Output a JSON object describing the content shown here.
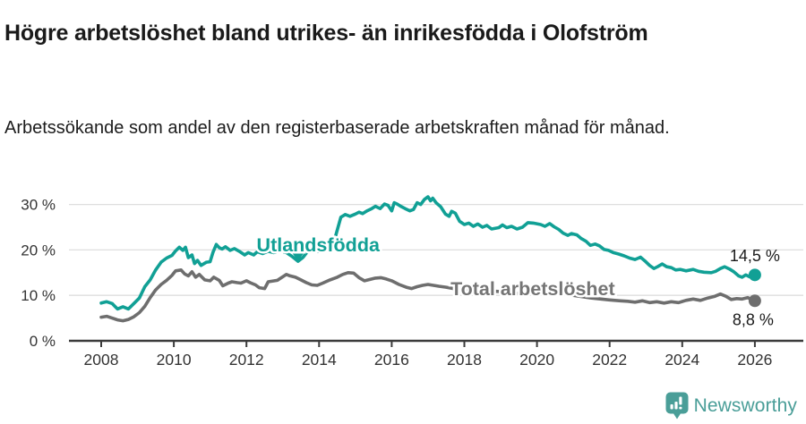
{
  "title": "Högre arbetslöshet bland utrikes- än inrikesfödda i Olofström",
  "subtitle": "Arbetssökande som andel av den registerbaserade arbetskraften månad för månad.",
  "branding": {
    "name": "Newsworthy",
    "color": "#4a9e98",
    "icon": "chart-speech-bubble"
  },
  "colors": {
    "foreign_born_line": "#11a095",
    "total_line": "#6e6e6e",
    "grid": "#dedede",
    "axis": "#3b3b3b",
    "tick_text": "#333333",
    "value_text": "#1a1a1a"
  },
  "chart_data": {
    "type": "line",
    "title": "",
    "xlabel": "",
    "ylabel": "",
    "grid": true,
    "xlim": [
      2007.1,
      2027.3
    ],
    "ylim": [
      0,
      33
    ],
    "x_ticks": [
      2008,
      2010,
      2012,
      2014,
      2016,
      2018,
      2020,
      2022,
      2024,
      2026
    ],
    "y_ticks": [
      [
        0,
        "0 %"
      ],
      [
        10,
        "10 %"
      ],
      [
        20,
        "20 %"
      ],
      [
        30,
        "30 %"
      ]
    ],
    "series": [
      {
        "name": "Utlandsfödda",
        "slug": "utlandsfodda",
        "color": "#11a095",
        "end_value": 14.5,
        "end_label": "14,5 %",
        "points": [
          [
            2008.0,
            8.3
          ],
          [
            2008.15,
            8.6
          ],
          [
            2008.3,
            8.2
          ],
          [
            2008.45,
            7.0
          ],
          [
            2008.6,
            7.5
          ],
          [
            2008.75,
            7.0
          ],
          [
            2008.9,
            8.2
          ],
          [
            2009.05,
            9.4
          ],
          [
            2009.2,
            11.9
          ],
          [
            2009.35,
            13.4
          ],
          [
            2009.5,
            15.6
          ],
          [
            2009.65,
            17.3
          ],
          [
            2009.8,
            18.2
          ],
          [
            2009.95,
            18.8
          ],
          [
            2010.05,
            19.8
          ],
          [
            2010.15,
            20.6
          ],
          [
            2010.25,
            19.9
          ],
          [
            2010.32,
            20.6
          ],
          [
            2010.4,
            18.3
          ],
          [
            2010.5,
            18.9
          ],
          [
            2010.57,
            17.0
          ],
          [
            2010.65,
            17.7
          ],
          [
            2010.75,
            16.6
          ],
          [
            2010.9,
            17.3
          ],
          [
            2011.0,
            17.4
          ],
          [
            2011.08,
            19.5
          ],
          [
            2011.17,
            21.2
          ],
          [
            2011.25,
            20.5
          ],
          [
            2011.33,
            20.2
          ],
          [
            2011.42,
            20.7
          ],
          [
            2011.55,
            19.9
          ],
          [
            2011.67,
            20.3
          ],
          [
            2011.8,
            19.7
          ],
          [
            2011.95,
            18.9
          ],
          [
            2012.05,
            19.4
          ],
          [
            2012.2,
            18.9
          ],
          [
            2012.3,
            19.6
          ],
          [
            2012.45,
            19.2
          ],
          [
            2012.6,
            19.7
          ],
          [
            2012.75,
            19.4
          ],
          [
            2012.95,
            19.7
          ],
          [
            2013.1,
            19.4
          ],
          [
            2013.25,
            18.6
          ],
          [
            2013.42,
            17.5
          ],
          [
            2013.55,
            18.3
          ],
          [
            2013.68,
            19.6
          ],
          [
            2013.8,
            19.8
          ],
          [
            2013.95,
            19.6
          ],
          [
            2014.1,
            19.8
          ],
          [
            2014.3,
            20.6
          ],
          [
            2014.45,
            22.9
          ],
          [
            2014.6,
            27.2
          ],
          [
            2014.72,
            27.8
          ],
          [
            2014.85,
            27.4
          ],
          [
            2015.0,
            27.9
          ],
          [
            2015.1,
            28.3
          ],
          [
            2015.2,
            28.0
          ],
          [
            2015.32,
            28.6
          ],
          [
            2015.45,
            29.1
          ],
          [
            2015.55,
            29.6
          ],
          [
            2015.68,
            29.1
          ],
          [
            2015.8,
            30.1
          ],
          [
            2015.9,
            29.8
          ],
          [
            2016.0,
            28.6
          ],
          [
            2016.07,
            30.4
          ],
          [
            2016.15,
            30.1
          ],
          [
            2016.25,
            29.6
          ],
          [
            2016.37,
            29.1
          ],
          [
            2016.5,
            28.6
          ],
          [
            2016.6,
            28.9
          ],
          [
            2016.7,
            30.4
          ],
          [
            2016.8,
            30.0
          ],
          [
            2016.9,
            31.1
          ],
          [
            2017.0,
            31.7
          ],
          [
            2017.07,
            30.8
          ],
          [
            2017.13,
            31.4
          ],
          [
            2017.22,
            30.4
          ],
          [
            2017.35,
            29.5
          ],
          [
            2017.48,
            27.9
          ],
          [
            2017.58,
            27.4
          ],
          [
            2017.65,
            28.5
          ],
          [
            2017.75,
            28.1
          ],
          [
            2017.87,
            26.3
          ],
          [
            2018.0,
            25.6
          ],
          [
            2018.12,
            25.9
          ],
          [
            2018.25,
            25.2
          ],
          [
            2018.37,
            25.7
          ],
          [
            2018.5,
            25.0
          ],
          [
            2018.62,
            25.4
          ],
          [
            2018.75,
            24.6
          ],
          [
            2018.95,
            24.9
          ],
          [
            2019.05,
            25.5
          ],
          [
            2019.17,
            24.9
          ],
          [
            2019.3,
            25.2
          ],
          [
            2019.45,
            24.6
          ],
          [
            2019.6,
            25.0
          ],
          [
            2019.75,
            26.0
          ],
          [
            2019.9,
            25.9
          ],
          [
            2020.1,
            25.6
          ],
          [
            2020.22,
            25.2
          ],
          [
            2020.35,
            25.8
          ],
          [
            2020.47,
            25.1
          ],
          [
            2020.6,
            24.5
          ],
          [
            2020.72,
            23.7
          ],
          [
            2020.85,
            23.2
          ],
          [
            2020.95,
            23.6
          ],
          [
            2021.1,
            23.3
          ],
          [
            2021.22,
            22.5
          ],
          [
            2021.35,
            21.9
          ],
          [
            2021.47,
            21.0
          ],
          [
            2021.6,
            21.3
          ],
          [
            2021.72,
            20.9
          ],
          [
            2021.85,
            20.1
          ],
          [
            2021.97,
            19.9
          ],
          [
            2022.1,
            19.4
          ],
          [
            2022.25,
            19.1
          ],
          [
            2022.4,
            18.7
          ],
          [
            2022.55,
            18.2
          ],
          [
            2022.7,
            17.9
          ],
          [
            2022.85,
            18.4
          ],
          [
            2022.97,
            17.6
          ],
          [
            2023.1,
            16.6
          ],
          [
            2023.22,
            15.9
          ],
          [
            2023.32,
            16.3
          ],
          [
            2023.45,
            16.9
          ],
          [
            2023.57,
            16.3
          ],
          [
            2023.7,
            16.1
          ],
          [
            2023.82,
            15.6
          ],
          [
            2023.95,
            15.7
          ],
          [
            2024.1,
            15.4
          ],
          [
            2024.3,
            15.7
          ],
          [
            2024.45,
            15.3
          ],
          [
            2024.6,
            15.1
          ],
          [
            2024.8,
            15.0
          ],
          [
            2024.92,
            15.3
          ],
          [
            2025.05,
            15.9
          ],
          [
            2025.17,
            16.3
          ],
          [
            2025.3,
            15.8
          ],
          [
            2025.42,
            15.2
          ],
          [
            2025.55,
            14.3
          ],
          [
            2025.65,
            14.0
          ],
          [
            2025.75,
            14.5
          ],
          [
            2025.85,
            14.1
          ],
          [
            2026.0,
            14.5
          ]
        ]
      },
      {
        "name": "Total arbetslöshet",
        "slug": "total-arbetsloshet",
        "color": "#6e6e6e",
        "end_value": 8.8,
        "end_label": "8,8 %",
        "points": [
          [
            2008.0,
            5.2
          ],
          [
            2008.15,
            5.4
          ],
          [
            2008.3,
            5.0
          ],
          [
            2008.45,
            4.6
          ],
          [
            2008.6,
            4.4
          ],
          [
            2008.75,
            4.7
          ],
          [
            2008.9,
            5.3
          ],
          [
            2009.05,
            6.2
          ],
          [
            2009.2,
            7.6
          ],
          [
            2009.35,
            9.5
          ],
          [
            2009.5,
            11.2
          ],
          [
            2009.65,
            12.4
          ],
          [
            2009.8,
            13.3
          ],
          [
            2009.95,
            14.4
          ],
          [
            2010.05,
            15.4
          ],
          [
            2010.2,
            15.6
          ],
          [
            2010.3,
            14.7
          ],
          [
            2010.4,
            14.3
          ],
          [
            2010.5,
            15.2
          ],
          [
            2010.6,
            14.0
          ],
          [
            2010.7,
            14.6
          ],
          [
            2010.85,
            13.4
          ],
          [
            2011.0,
            13.2
          ],
          [
            2011.1,
            14.0
          ],
          [
            2011.25,
            13.3
          ],
          [
            2011.35,
            12.1
          ],
          [
            2011.5,
            12.7
          ],
          [
            2011.6,
            13.0
          ],
          [
            2011.75,
            12.8
          ],
          [
            2011.85,
            12.7
          ],
          [
            2012.0,
            13.2
          ],
          [
            2012.1,
            12.8
          ],
          [
            2012.25,
            12.3
          ],
          [
            2012.35,
            11.7
          ],
          [
            2012.5,
            11.5
          ],
          [
            2012.6,
            13.0
          ],
          [
            2012.85,
            13.3
          ],
          [
            2013.1,
            14.6
          ],
          [
            2013.2,
            14.3
          ],
          [
            2013.35,
            14.0
          ],
          [
            2013.5,
            13.4
          ],
          [
            2013.65,
            12.8
          ],
          [
            2013.8,
            12.3
          ],
          [
            2013.95,
            12.2
          ],
          [
            2014.1,
            12.7
          ],
          [
            2014.3,
            13.4
          ],
          [
            2014.5,
            14.0
          ],
          [
            2014.65,
            14.6
          ],
          [
            2014.8,
            15.0
          ],
          [
            2014.95,
            14.9
          ],
          [
            2015.1,
            13.9
          ],
          [
            2015.25,
            13.2
          ],
          [
            2015.4,
            13.5
          ],
          [
            2015.55,
            13.8
          ],
          [
            2015.7,
            13.9
          ],
          [
            2015.85,
            13.6
          ],
          [
            2016.0,
            13.2
          ],
          [
            2016.2,
            12.4
          ],
          [
            2016.4,
            11.8
          ],
          [
            2016.55,
            11.5
          ],
          [
            2016.7,
            11.9
          ],
          [
            2016.85,
            12.2
          ],
          [
            2017.0,
            12.4
          ],
          [
            2017.15,
            12.2
          ],
          [
            2017.3,
            12.0
          ],
          [
            2017.5,
            11.8
          ],
          [
            2017.7,
            11.5
          ],
          [
            2018.0,
            11.4
          ],
          [
            2018.5,
            11.1
          ],
          [
            2019.0,
            10.8
          ],
          [
            2019.5,
            10.4
          ],
          [
            2020.0,
            10.9
          ],
          [
            2020.5,
            10.6
          ],
          [
            2021.0,
            10.0
          ],
          [
            2021.5,
            9.4
          ],
          [
            2022.0,
            9.0
          ],
          [
            2022.3,
            8.8
          ],
          [
            2022.5,
            8.7
          ],
          [
            2022.7,
            8.5
          ],
          [
            2022.9,
            8.8
          ],
          [
            2023.1,
            8.4
          ],
          [
            2023.3,
            8.6
          ],
          [
            2023.5,
            8.3
          ],
          [
            2023.7,
            8.6
          ],
          [
            2023.9,
            8.4
          ],
          [
            2024.1,
            8.9
          ],
          [
            2024.3,
            9.2
          ],
          [
            2024.5,
            8.9
          ],
          [
            2024.7,
            9.4
          ],
          [
            2024.9,
            9.8
          ],
          [
            2025.05,
            10.3
          ],
          [
            2025.2,
            9.8
          ],
          [
            2025.35,
            9.1
          ],
          [
            2025.5,
            9.3
          ],
          [
            2025.65,
            9.2
          ],
          [
            2025.8,
            9.5
          ],
          [
            2026.0,
            8.8
          ]
        ]
      }
    ],
    "annotations": [
      {
        "name": "series-label-utlandsfodda",
        "text": "Utlandsfödda",
        "x": 2012.28,
        "y": 19.7,
        "color": "#11a095",
        "bold": true,
        "halo": true,
        "size": 21.5,
        "anchor": "start",
        "marker": {
          "x": 2013.42,
          "y_top": 19.2,
          "y_tip": 17.5
        }
      },
      {
        "name": "series-label-total-arbetsloshet",
        "text": "Total arbetslöshet",
        "x": 2017.62,
        "y": 10.05,
        "color": "#757575",
        "bold": true,
        "halo": true,
        "size": 21.5,
        "anchor": "start"
      },
      {
        "name": "end-value-utlandsfodda",
        "text": "14,5 %",
        "x": 2026.0,
        "y": 17.55,
        "color": "#1a1a1a",
        "bold": false,
        "halo": false,
        "size": 18,
        "anchor": "middle"
      },
      {
        "name": "end-value-total-arbetsloshet",
        "text": "8,8 %",
        "x": 2025.95,
        "y": 3.4,
        "color": "#1a1a1a",
        "bold": false,
        "halo": false,
        "size": 18,
        "anchor": "middle"
      }
    ],
    "legend_position": "inline-labels"
  }
}
